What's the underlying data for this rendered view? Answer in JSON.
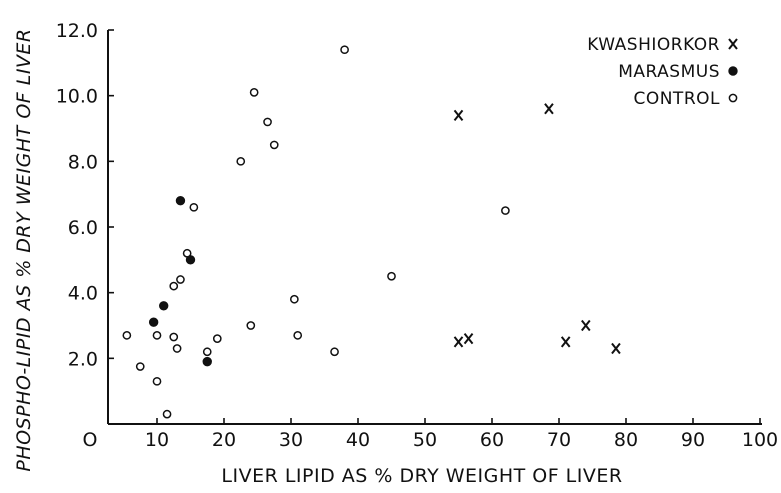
{
  "chart_data": {
    "type": "scatter",
    "xlabel": "LIVER LIPID AS % DRY WEIGHT OF LIVER",
    "ylabel": "PHOSPHO-LIPID AS % DRY WEIGHT OF LIVER",
    "xlim": [
      0,
      100
    ],
    "ylim": [
      0,
      12
    ],
    "x_ticks": [
      "O",
      "10",
      "20",
      "30",
      "40",
      "50",
      "60",
      "70",
      "80",
      "90",
      "100"
    ],
    "y_ticks": [
      "2.0",
      "4.0",
      "6.0",
      "8.0",
      "10.0",
      "12.0"
    ],
    "grid": false,
    "legend_position": "top-right",
    "series": [
      {
        "name": "KWASHIORKOR",
        "marker": "x",
        "points": [
          [
            55,
            9.4
          ],
          [
            68.5,
            9.6
          ],
          [
            55,
            2.5
          ],
          [
            56.5,
            2.6
          ],
          [
            71,
            2.5
          ],
          [
            74,
            3.0
          ],
          [
            78.5,
            2.3
          ]
        ]
      },
      {
        "name": "MARASMUS",
        "marker": "filled-circle",
        "points": [
          [
            13.5,
            6.8
          ],
          [
            15,
            5.0
          ],
          [
            11,
            3.6
          ],
          [
            9.5,
            3.1
          ],
          [
            17.5,
            1.9
          ]
        ]
      },
      {
        "name": "CONTROL",
        "marker": "open-circle",
        "points": [
          [
            38,
            11.4
          ],
          [
            24.5,
            10.1
          ],
          [
            26.5,
            9.2
          ],
          [
            27.5,
            8.5
          ],
          [
            22.5,
            8.0
          ],
          [
            15.5,
            6.6
          ],
          [
            14.5,
            5.2
          ],
          [
            62,
            6.5
          ],
          [
            45,
            4.5
          ],
          [
            13.5,
            4.4
          ],
          [
            12.5,
            4.2
          ],
          [
            30.5,
            3.8
          ],
          [
            24,
            3.0
          ],
          [
            5.5,
            2.7
          ],
          [
            10,
            2.7
          ],
          [
            12.5,
            2.65
          ],
          [
            31,
            2.7
          ],
          [
            13,
            2.3
          ],
          [
            19,
            2.6
          ],
          [
            17.5,
            2.2
          ],
          [
            36.5,
            2.2
          ],
          [
            7.5,
            1.75
          ],
          [
            10,
            1.3
          ],
          [
            11.5,
            0.3
          ]
        ]
      }
    ]
  }
}
